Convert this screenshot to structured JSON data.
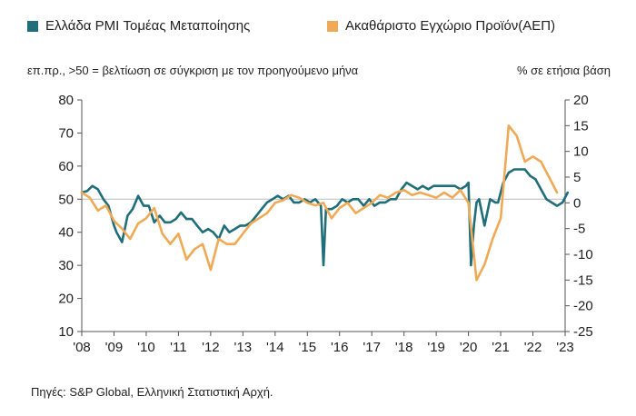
{
  "chart_data": {
    "type": "line",
    "series": [
      {
        "name": "Ελλάδα PMI Τομέας Μεταποίησης",
        "axis": "left",
        "color": "#1f6e7a",
        "x": [
          2008.0,
          2008.17,
          2008.33,
          2008.5,
          2008.67,
          2008.83,
          2009.0,
          2009.08,
          2009.25,
          2009.42,
          2009.58,
          2009.75,
          2009.92,
          2010.08,
          2010.25,
          2010.42,
          2010.58,
          2010.75,
          2010.92,
          2011.08,
          2011.25,
          2011.42,
          2011.58,
          2011.75,
          2011.92,
          2012.08,
          2012.25,
          2012.42,
          2012.58,
          2012.75,
          2012.92,
          2013.08,
          2013.25,
          2013.42,
          2013.58,
          2013.75,
          2013.92,
          2014.08,
          2014.25,
          2014.42,
          2014.58,
          2014.75,
          2014.92,
          2015.08,
          2015.25,
          2015.42,
          2015.5,
          2015.58,
          2015.75,
          2015.92,
          2016.08,
          2016.25,
          2016.42,
          2016.58,
          2016.75,
          2016.92,
          2017.08,
          2017.25,
          2017.42,
          2017.58,
          2017.75,
          2017.92,
          2018.08,
          2018.25,
          2018.42,
          2018.58,
          2018.75,
          2018.92,
          2019.08,
          2019.25,
          2019.42,
          2019.58,
          2019.75,
          2019.92,
          2020.0,
          2020.08,
          2020.17,
          2020.25,
          2020.33,
          2020.5,
          2020.67,
          2020.83,
          2020.92,
          2021.08,
          2021.25,
          2021.42,
          2021.58,
          2021.75,
          2021.92,
          2022.08,
          2022.25,
          2022.42,
          2022.58,
          2022.75,
          2022.92,
          2023.08
        ],
        "values": [
          52,
          52.5,
          54,
          53,
          50,
          48,
          42,
          40,
          37,
          45,
          47,
          51,
          48,
          48,
          43,
          45,
          43,
          43,
          44,
          46,
          44,
          44,
          42,
          40,
          41,
          40,
          38,
          42,
          40,
          41,
          42,
          42,
          43,
          45,
          47,
          49,
          50,
          51,
          50,
          51,
          49,
          49,
          50,
          49,
          50,
          48,
          30,
          47,
          47,
          48,
          50,
          49,
          50,
          50,
          48,
          50,
          48,
          49,
          49,
          50,
          50,
          53,
          55,
          54,
          53,
          54,
          53,
          54,
          54,
          54,
          54,
          54,
          53,
          54,
          55,
          30,
          42,
          49,
          50,
          42,
          50,
          49,
          49,
          55,
          58,
          59,
          59,
          59,
          57,
          56,
          53,
          50,
          49,
          48,
          49,
          52
        ]
      },
      {
        "name": "Ακαθάριστο Εγχώριο Προϊόν(ΑΕΠ)",
        "axis": "right",
        "color": "#f0aa55",
        "x": [
          2008.0,
          2008.25,
          2008.5,
          2008.75,
          2009.0,
          2009.25,
          2009.5,
          2009.75,
          2010.0,
          2010.25,
          2010.5,
          2010.75,
          2011.0,
          2011.25,
          2011.5,
          2011.75,
          2012.0,
          2012.25,
          2012.5,
          2012.75,
          2013.0,
          2013.25,
          2013.5,
          2013.75,
          2014.0,
          2014.25,
          2014.5,
          2014.75,
          2015.0,
          2015.25,
          2015.5,
          2015.75,
          2016.0,
          2016.25,
          2016.5,
          2016.75,
          2017.0,
          2017.25,
          2017.5,
          2017.75,
          2018.0,
          2018.25,
          2018.5,
          2018.75,
          2019.0,
          2019.25,
          2019.5,
          2019.75,
          2020.0,
          2020.25,
          2020.5,
          2020.75,
          2021.0,
          2021.25,
          2021.5,
          2021.75,
          2022.0,
          2022.25,
          2022.5,
          2022.75
        ],
        "values": [
          2,
          1,
          -1.5,
          -0.5,
          -3.5,
          -5,
          -7,
          -4,
          -3,
          -1,
          -6,
          -8,
          -6,
          -11,
          -9,
          -8,
          -13,
          -7,
          -8,
          -8,
          -6,
          -4,
          -3,
          -2,
          0,
          0.5,
          1.5,
          1,
          0,
          -0.5,
          0,
          -3,
          -1,
          0,
          -2,
          -1,
          0,
          1.5,
          1,
          2,
          2.5,
          1.5,
          2,
          1.5,
          1,
          2,
          1,
          2.5,
          0,
          -15,
          -12,
          -7,
          -3,
          15,
          13,
          8,
          9,
          8,
          5,
          2
        ]
      }
    ],
    "left_axis": {
      "ylim": [
        10,
        80
      ],
      "ticks": [
        10,
        20,
        30,
        40,
        50,
        60,
        70,
        80
      ]
    },
    "right_axis": {
      "ylim": [
        -25,
        20
      ],
      "ticks": [
        -25,
        -20,
        -15,
        -10,
        -5,
        0,
        5,
        10,
        15,
        20
      ]
    },
    "x_axis": {
      "xlim": [
        2008,
        2023
      ],
      "tick_values": [
        2008,
        2009,
        2010,
        2011,
        2012,
        2013,
        2014,
        2015,
        2016,
        2017,
        2018,
        2019,
        2020,
        2021,
        2022,
        2023
      ],
      "tick_labels": [
        "'08",
        "'09",
        "'10",
        "'11",
        "'12",
        "'13",
        "'14",
        "'15",
        "'16",
        "'17",
        "'18",
        "'19",
        "'20",
        "'21",
        "'22",
        "'23"
      ]
    },
    "left_unit_label": "επ.πρ., >50 = βελτίωση σε σύγκριση με τον προηγούμενο μήνα",
    "right_unit_label": "% σε ετήσια βάση",
    "reference_line": 50,
    "grid": false,
    "legend_position": "top"
  },
  "source": "Πηγές: S&P Global, Ελληνική Στατιστική Αρχή."
}
